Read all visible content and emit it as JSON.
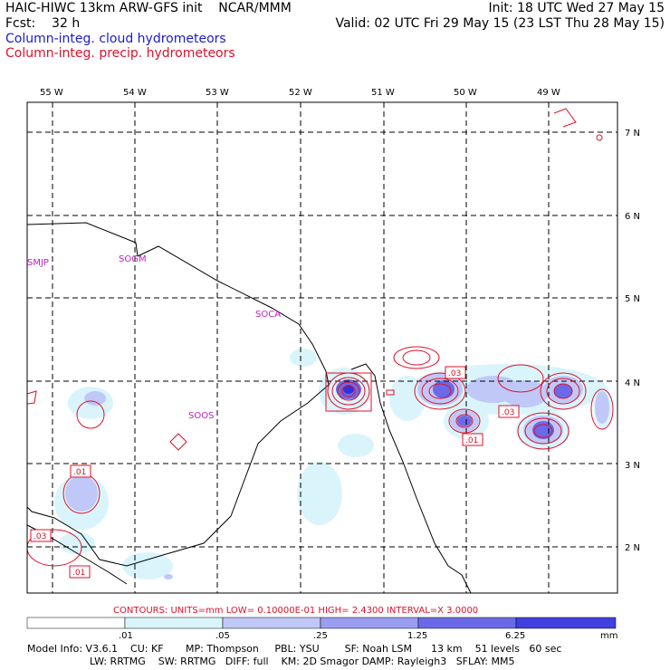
{
  "header": {
    "title": "HAIC-HIWC 13km ARW-GFS init    NCAR/MMM",
    "fcst": "Fcst:    32 h",
    "init": "Init: 18 UTC Wed 27 May 15",
    "valid": "Valid: 02 UTC Fri 29 May 15 (23 LST Thu 28 May 15)",
    "legend_cloud": "Column-integ. cloud hydrometeors",
    "legend_precip": "Column-integ. precip. hydrometeors"
  },
  "map": {
    "lon_labels": [
      "55 W",
      "54 W",
      "53 W",
      "52 W",
      "51 W",
      "50 W",
      "49 W"
    ],
    "lat_labels": [
      "7 N",
      "6 N",
      "5 N",
      "4 N",
      "3 N",
      "2 N"
    ],
    "stations": [
      "SMJP",
      "SOGM",
      "SOCA",
      "SOOS"
    ],
    "contour_labels": [
      ".03",
      ".01",
      ".03",
      ".01",
      ".03",
      ".01"
    ]
  },
  "colorbar": {
    "contour_line": "CONTOURS:  UNITS=mm   LOW= 0.10000E-01  HIGH=  2.4300      INTERVAL=X  3.0000",
    "ticks": [
      ".01",
      ".05",
      ".25",
      "1.25",
      "6.25"
    ],
    "unit": "mm",
    "colors": [
      "#ffffff",
      "#d9f5fb",
      "#bfc8f7",
      "#9a9df2",
      "#6a6ae8",
      "#4040e0",
      "#1e1ee6"
    ]
  },
  "footer": {
    "line1": "Model Info: V3.6.1    CU: KF       MP: Thompson     PBL: YSU        SF: Noah LSM      13 km    51 levels   60 sec",
    "line2": "LW: RRTMG    SW: RRTMG   DIFF: full    KM: 2D Smagor DAMP: Rayleigh3   SFLAY: MM5"
  }
}
